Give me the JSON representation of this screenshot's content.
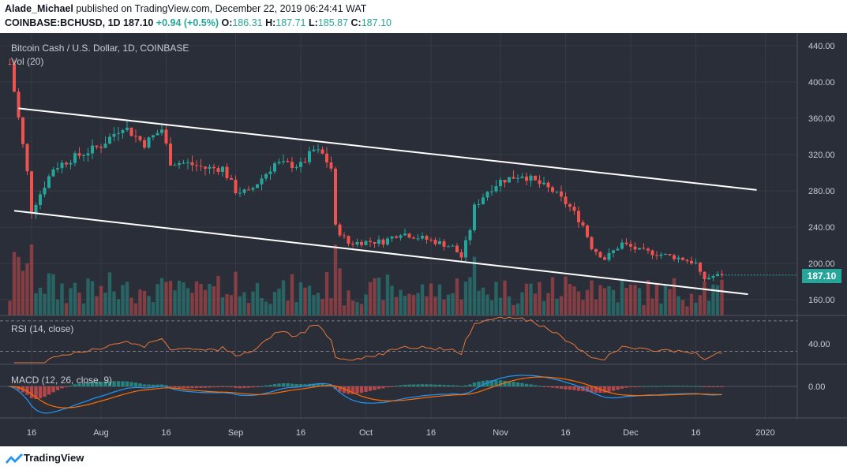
{
  "header": {
    "author": "Alade_Michael",
    "published_text": "published on TradingView.com, December 22, 2019 06:24:41 WAT",
    "symbol": "COINBASE:BCHUSD,",
    "timeframe": "1D",
    "last": "187.10",
    "change": "+0.94 (+0.5%)",
    "o_label": "O:",
    "o_val": "186.31",
    "h_label": "H:",
    "h_val": "187.71",
    "l_label": "L:",
    "l_val": "185.87",
    "c_label": "C:",
    "c_val": "187.10"
  },
  "main_pane": {
    "title": "Bitcoin Cash / U.S. Dollar, 1D, COINBASE",
    "vol_label": "Vol (20)",
    "last_price_tag": "187.10"
  },
  "rsi_pane": {
    "label": "RSI (14, close)",
    "tick": "40.00"
  },
  "macd_pane": {
    "label": "MACD (12, 26, close, 9)",
    "tick": "0.00"
  },
  "footer": {
    "brand": "TradingView"
  },
  "colors": {
    "background": "#2a2e39",
    "up": "#26a69a",
    "down": "#ef5350",
    "rsi": "#e8763a",
    "macd": "#2196f3",
    "signal": "#ff6d00",
    "channel": "#ffffff"
  },
  "chart_data": [
    {
      "type": "candlestick",
      "title": "Bitcoin Cash / U.S. Dollar, 1D, COINBASE",
      "y_ticks": [
        "160.00",
        "200.00",
        "240.00",
        "280.00",
        "320.00",
        "360.00",
        "400.00",
        "440.00"
      ],
      "ylim": [
        140,
        452
      ],
      "x_ticks": [
        "16",
        "Aug",
        "16",
        "Sep",
        "16",
        "Oct",
        "16",
        "Nov",
        "16",
        "Dec",
        "16",
        "2020"
      ],
      "anchors": [
        {
          "date": "2019-07-11",
          "price": 420
        },
        {
          "date": "2019-07-15",
          "price": 300
        },
        {
          "date": "2019-07-16",
          "price": 258
        },
        {
          "date": "2019-07-21",
          "price": 305
        },
        {
          "date": "2019-07-25",
          "price": 315
        },
        {
          "date": "2019-08-01",
          "price": 330
        },
        {
          "date": "2019-08-06",
          "price": 352
        },
        {
          "date": "2019-08-11",
          "price": 332
        },
        {
          "date": "2019-08-15",
          "price": 348
        },
        {
          "date": "2019-08-17",
          "price": 312
        },
        {
          "date": "2019-08-21",
          "price": 310
        },
        {
          "date": "2019-08-25",
          "price": 305
        },
        {
          "date": "2019-08-29",
          "price": 305
        },
        {
          "date": "2019-09-01",
          "price": 280
        },
        {
          "date": "2019-09-04",
          "price": 278
        },
        {
          "date": "2019-09-10",
          "price": 310
        },
        {
          "date": "2019-09-16",
          "price": 308
        },
        {
          "date": "2019-09-19",
          "price": 325
        },
        {
          "date": "2019-09-21",
          "price": 320
        },
        {
          "date": "2019-09-23",
          "price": 305
        },
        {
          "date": "2019-09-24",
          "price": 240
        },
        {
          "date": "2019-09-27",
          "price": 222
        },
        {
          "date": "2019-10-01",
          "price": 224
        },
        {
          "date": "2019-10-05",
          "price": 224
        },
        {
          "date": "2019-10-09",
          "price": 234
        },
        {
          "date": "2019-10-12",
          "price": 230
        },
        {
          "date": "2019-10-17",
          "price": 224
        },
        {
          "date": "2019-10-21",
          "price": 218
        },
        {
          "date": "2019-10-23",
          "price": 207
        },
        {
          "date": "2019-10-25",
          "price": 238
        },
        {
          "date": "2019-10-26",
          "price": 262
        },
        {
          "date": "2019-10-29",
          "price": 280
        },
        {
          "date": "2019-11-01",
          "price": 291
        },
        {
          "date": "2019-11-06",
          "price": 298
        },
        {
          "date": "2019-11-09",
          "price": 290
        },
        {
          "date": "2019-11-13",
          "price": 280
        },
        {
          "date": "2019-11-17",
          "price": 262
        },
        {
          "date": "2019-11-20",
          "price": 242
        },
        {
          "date": "2019-11-22",
          "price": 218
        },
        {
          "date": "2019-11-25",
          "price": 205
        },
        {
          "date": "2019-11-29",
          "price": 222
        },
        {
          "date": "2019-12-03",
          "price": 214
        },
        {
          "date": "2019-12-08",
          "price": 210
        },
        {
          "date": "2019-12-13",
          "price": 205
        },
        {
          "date": "2019-12-16",
          "price": 200
        },
        {
          "date": "2019-12-17",
          "price": 188
        },
        {
          "date": "2019-12-18",
          "price": 183
        },
        {
          "date": "2019-12-20",
          "price": 186
        },
        {
          "date": "2019-12-22",
          "price": 187.1
        }
      ],
      "channel_upper": [
        {
          "date": "2019-07-13",
          "price": 371
        },
        {
          "date": "2019-12-30",
          "price": 281
        }
      ],
      "channel_lower": [
        {
          "date": "2019-07-12",
          "price": 258
        },
        {
          "date": "2019-12-28",
          "price": 166
        }
      ],
      "last_price": 187.1
    },
    {
      "type": "line",
      "name": "RSI (14, close)",
      "y_ticks": [
        "40.00"
      ],
      "levels": [
        70,
        30
      ],
      "ylim": [
        15,
        75
      ]
    },
    {
      "type": "histogram+line",
      "name": "MACD (12, 26, close, 9)",
      "y_ticks": [
        "0.00"
      ]
    }
  ]
}
